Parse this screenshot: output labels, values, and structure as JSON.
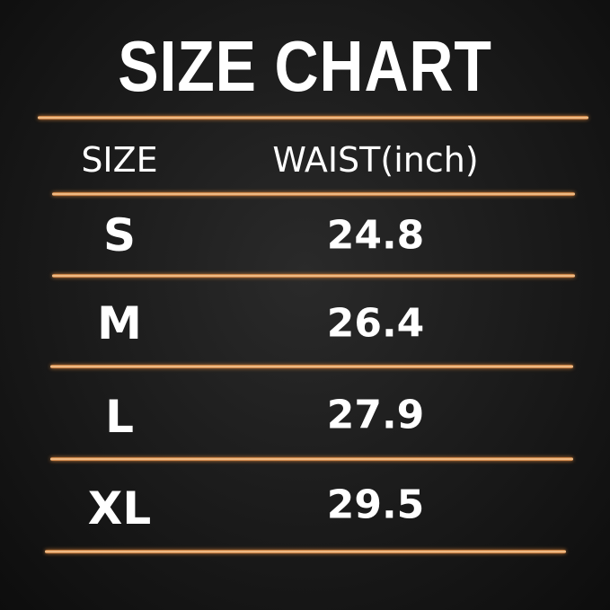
{
  "title": "SIZE CHART",
  "headers": {
    "size": "SIZE",
    "waist": "WAIST(inch)"
  },
  "rows": [
    {
      "size": "S",
      "waist": "24.8"
    },
    {
      "size": "M",
      "waist": "26.4"
    },
    {
      "size": "L",
      "waist": "27.9"
    },
    {
      "size": "XL",
      "waist": "29.5"
    }
  ],
  "colors": {
    "background": "#1a1a1a",
    "divider": "#e8944a",
    "text": "#ffffff"
  }
}
